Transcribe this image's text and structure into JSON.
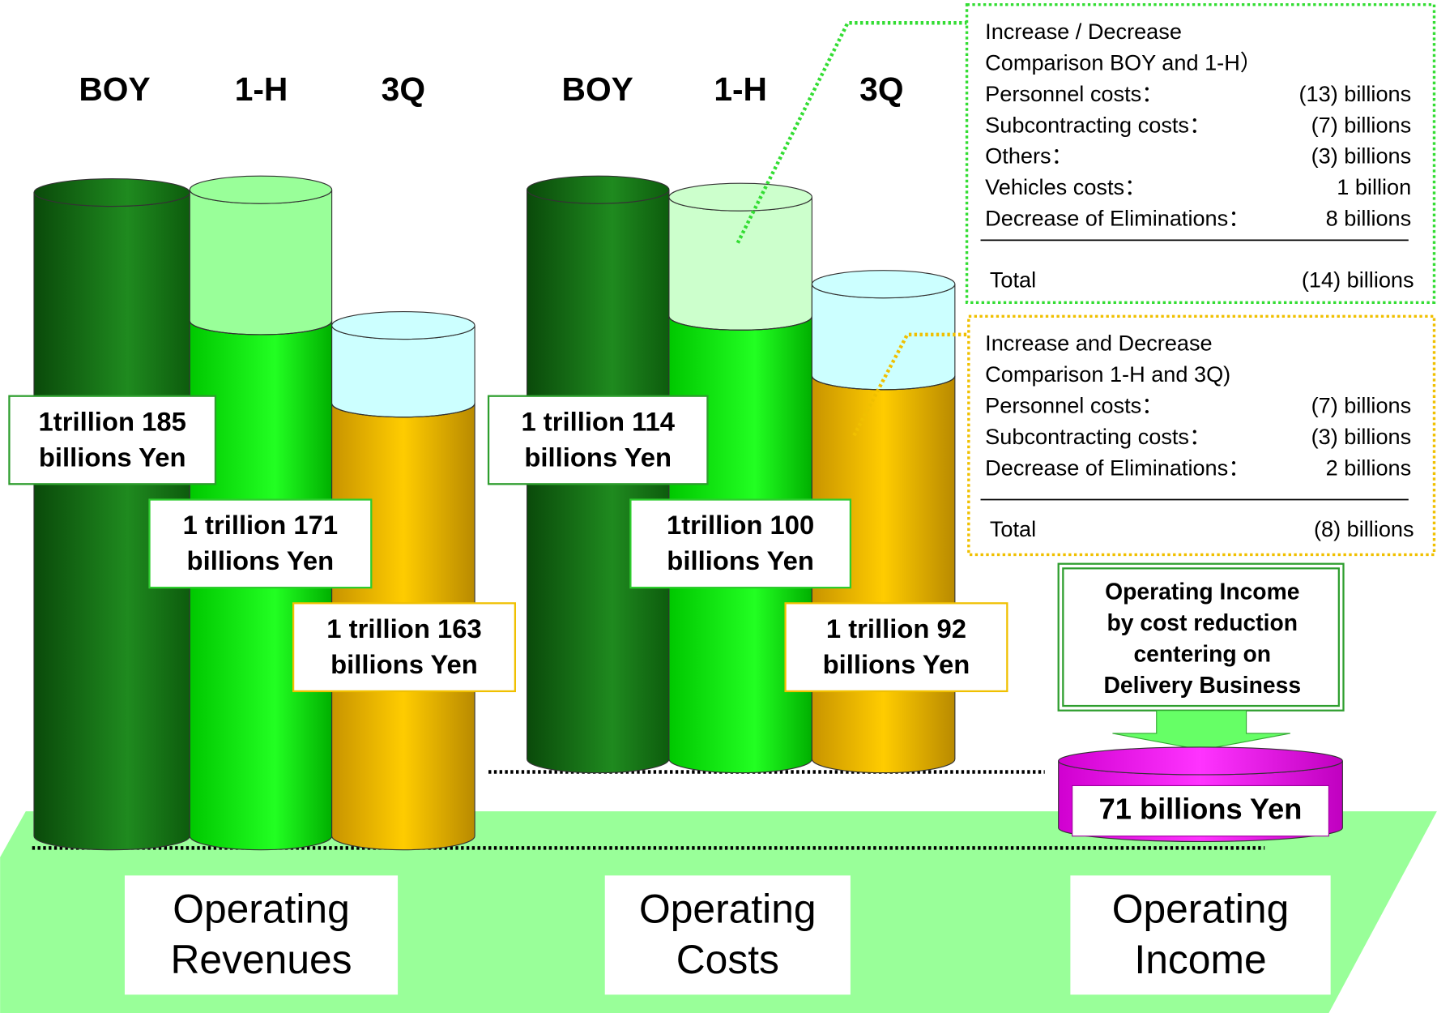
{
  "revenues": {
    "headers": [
      "BOY",
      "1-H",
      "3Q"
    ],
    "labels": [
      [
        "1trillion 185",
        "billions Yen"
      ],
      [
        "1 trillion 171",
        "billions Yen"
      ],
      [
        "1 trillion 163",
        "billions Yen"
      ]
    ],
    "caption": [
      "Operating",
      "Revenues"
    ]
  },
  "costs": {
    "headers": [
      "BOY",
      "1-H",
      "3Q"
    ],
    "labels": [
      [
        "1 trillion 114",
        "billions Yen"
      ],
      [
        "1trillion 100",
        "billions Yen"
      ],
      [
        "1 trillion 92",
        "billions Yen"
      ]
    ],
    "caption": [
      "Operating",
      "Costs"
    ]
  },
  "income": {
    "note": [
      "Operating Income",
      "by cost reduction",
      "centering on",
      "Delivery Business"
    ],
    "value": "71 billions Yen",
    "caption": [
      "Operating",
      "Income"
    ]
  },
  "box1": {
    "title": [
      "Increase / Decrease",
      "Comparison BOY and 1-H）"
    ],
    "rows": [
      [
        "Personnel costs：",
        "(13) billions"
      ],
      [
        "Subcontracting costs：",
        "(7) billions"
      ],
      [
        "Others：",
        "(3) billions"
      ],
      [
        "Vehicles costs：",
        "1 billion"
      ],
      [
        "Decrease of Eliminations：",
        "8 billions"
      ]
    ],
    "total": [
      "Total",
      "(14) billions"
    ]
  },
  "box2": {
    "title": [
      "Increase and Decrease",
      "Comparison 1-H and 3Q)"
    ],
    "rows": [
      [
        "Personnel costs：",
        "(7) billions"
      ],
      [
        "Subcontracting costs：",
        "(3) billions"
      ],
      [
        "Decrease of Eliminations：",
        "2 billions"
      ]
    ],
    "total": [
      "Total",
      "(8) billions"
    ]
  }
}
